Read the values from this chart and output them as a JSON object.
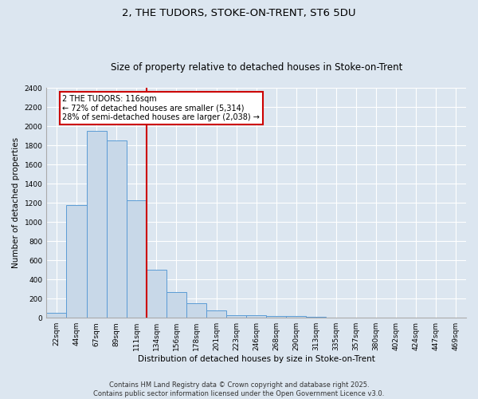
{
  "title1": "2, THE TUDORS, STOKE-ON-TRENT, ST6 5DU",
  "title2": "Size of property relative to detached houses in Stoke-on-Trent",
  "xlabel": "Distribution of detached houses by size in Stoke-on-Trent",
  "ylabel": "Number of detached properties",
  "categories": [
    "22sqm",
    "44sqm",
    "67sqm",
    "89sqm",
    "111sqm",
    "134sqm",
    "156sqm",
    "178sqm",
    "201sqm",
    "223sqm",
    "246sqm",
    "268sqm",
    "290sqm",
    "313sqm",
    "335sqm",
    "357sqm",
    "380sqm",
    "402sqm",
    "424sqm",
    "447sqm",
    "469sqm"
  ],
  "values": [
    50,
    1175,
    1950,
    1850,
    1225,
    500,
    265,
    150,
    75,
    30,
    25,
    20,
    15,
    10,
    5,
    3,
    2,
    1,
    1,
    0,
    0
  ],
  "bar_color": "#c8d8e8",
  "bar_edge_color": "#5b9bd5",
  "vline_x": 4.5,
  "annotation_text": "2 THE TUDORS: 116sqm\n← 72% of detached houses are smaller (5,314)\n28% of semi-detached houses are larger (2,038) →",
  "annotation_box_color": "#ffffff",
  "annotation_box_edge_color": "#cc0000",
  "vline_color": "#cc0000",
  "ylim": [
    0,
    2400
  ],
  "yticks": [
    0,
    200,
    400,
    600,
    800,
    1000,
    1200,
    1400,
    1600,
    1800,
    2000,
    2200,
    2400
  ],
  "footer1": "Contains HM Land Registry data © Crown copyright and database right 2025.",
  "footer2": "Contains public sector information licensed under the Open Government Licence v3.0.",
  "bg_color": "#dce6f0",
  "plot_bg_color": "#dce6f0",
  "grid_color": "#ffffff",
  "title1_fontsize": 9.5,
  "title2_fontsize": 8.5,
  "tick_fontsize": 6.5,
  "ylabel_fontsize": 7.5,
  "xlabel_fontsize": 7.5,
  "footer_fontsize": 6,
  "annotation_fontsize": 7
}
